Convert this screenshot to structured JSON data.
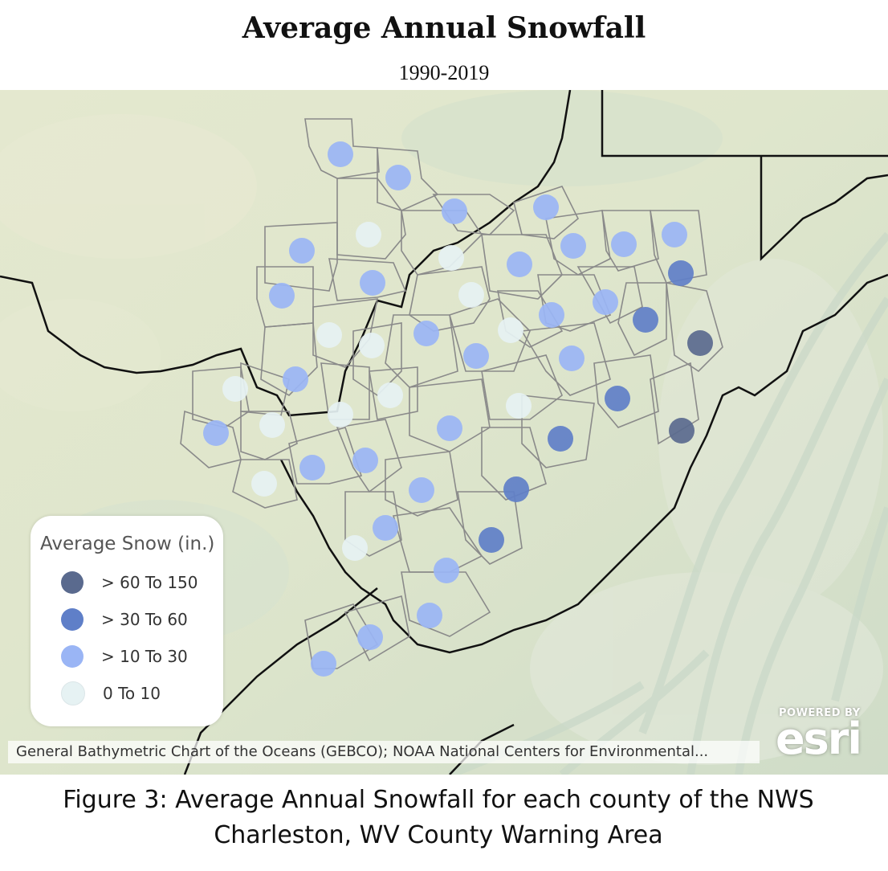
{
  "title": "Average Annual Snowfall",
  "subtitle": "1990-2019",
  "legend": {
    "title": "Average Snow (in.)",
    "classes": [
      {
        "label": "> 60 To 150",
        "color": "#5a6a8e"
      },
      {
        "label": "> 30 To 60",
        "color": "#5f7fc8"
      },
      {
        "label": "> 10 To 30",
        "color": "#9ab5f5"
      },
      {
        "label": "0 To 10",
        "color": "#e6f2f3"
      }
    ]
  },
  "attribution": "General Bathymetric Chart of the Oceans (GEBCO); NOAA National Centers for Environmental...",
  "logo": {
    "powered_by": "POWERED BY",
    "word": "esri"
  },
  "caption": {
    "line1": "Figure 3:  Average Annual Snowfall for each county of the NWS",
    "line2": "Charleston, WV County Warning Area"
  },
  "counties": [
    {
      "snow_class": 2
    },
    {
      "snow_class": 2
    },
    {
      "snow_class": 2
    },
    {
      "snow_class": 2
    },
    {
      "snow_class": 3
    },
    {
      "snow_class": 2
    },
    {
      "snow_class": 3
    },
    {
      "snow_class": 2
    },
    {
      "snow_class": 2
    },
    {
      "snow_class": 2
    },
    {
      "snow_class": 2
    },
    {
      "snow_class": 1
    },
    {
      "snow_class": 2
    },
    {
      "snow_class": 3
    },
    {
      "snow_class": 2
    },
    {
      "snow_class": 2
    },
    {
      "snow_class": 1
    },
    {
      "snow_class": 3
    },
    {
      "snow_class": 3
    },
    {
      "snow_class": 2
    },
    {
      "snow_class": 3
    },
    {
      "snow_class": 2
    },
    {
      "snow_class": 0
    },
    {
      "snow_class": 2
    },
    {
      "snow_class": 3
    },
    {
      "snow_class": 3
    },
    {
      "snow_class": 3
    },
    {
      "snow_class": 1
    },
    {
      "snow_class": 3
    },
    {
      "snow_class": 2
    },
    {
      "snow_class": 3
    },
    {
      "snow_class": 2
    },
    {
      "snow_class": 1
    },
    {
      "snow_class": 0
    },
    {
      "snow_class": 2
    },
    {
      "snow_class": 2
    },
    {
      "snow_class": 3
    },
    {
      "snow_class": 2
    },
    {
      "snow_class": 2
    },
    {
      "snow_class": 1
    },
    {
      "snow_class": 1
    },
    {
      "snow_class": 2
    },
    {
      "snow_class": 3
    },
    {
      "snow_class": 2
    },
    {
      "snow_class": 2
    },
    {
      "snow_class": 2
    },
    {
      "snow_class": 2
    }
  ]
}
